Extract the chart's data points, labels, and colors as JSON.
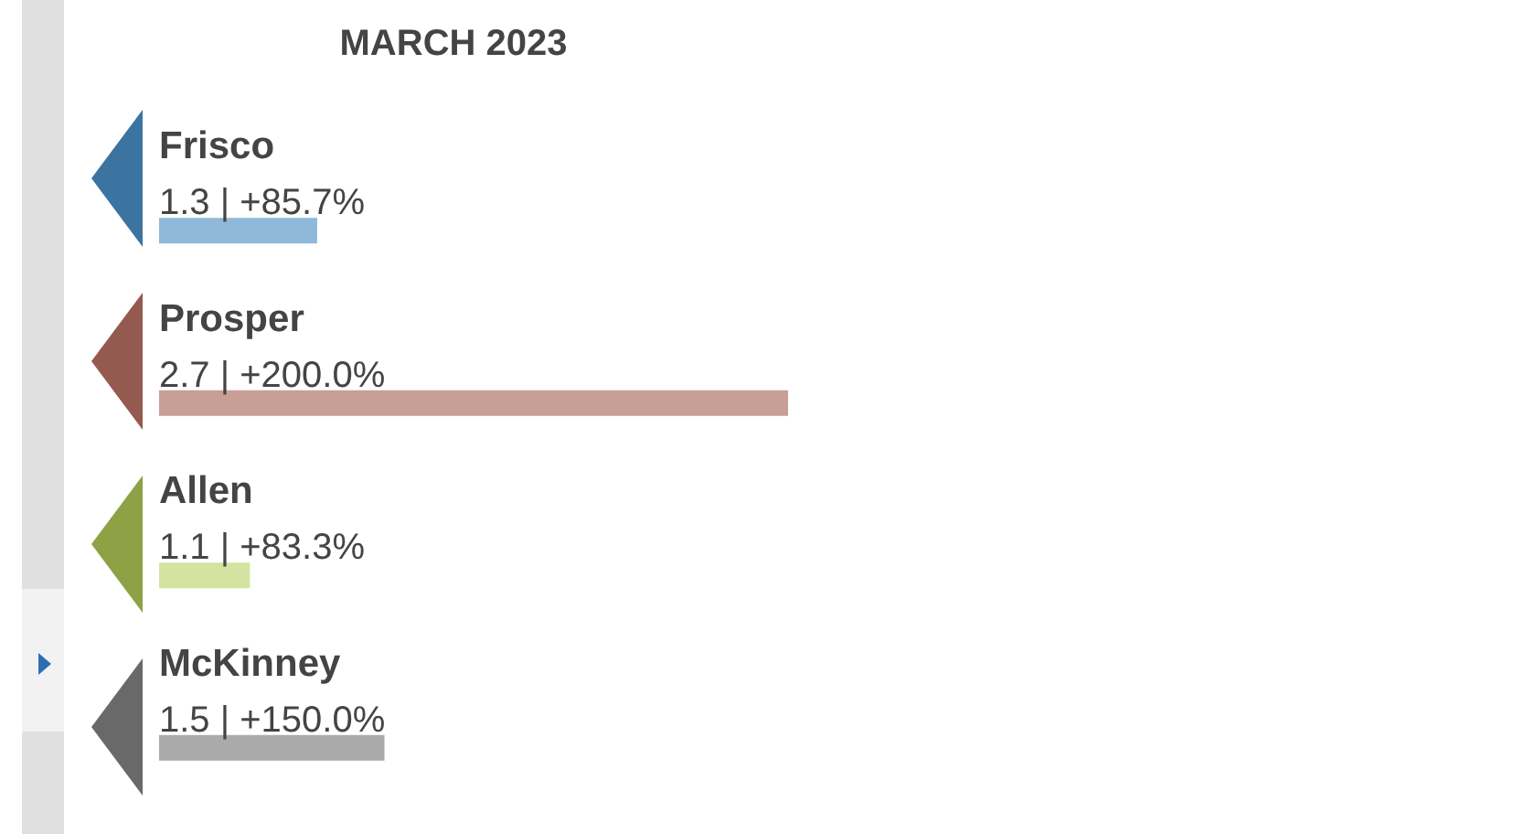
{
  "chart_data": {
    "type": "bar",
    "orientation": "horizontal",
    "title": "MARCH 2023",
    "categories": [
      "Frisco",
      "Prosper",
      "Allen",
      "McKinney"
    ],
    "values": [
      1.3,
      2.7,
      1.1,
      1.5
    ],
    "value_labels": [
      "1.3 | +85.7%",
      "2.7 | +200.0%",
      "1.1 | +83.3%",
      "1.5 | +150.0%"
    ],
    "colors": [
      "#8fb8d9",
      "#c99e97",
      "#d5e3a0",
      "#aaaaaa"
    ],
    "xlim": [
      0.83,
      2.7
    ],
    "tick_labels": false
  }
}
